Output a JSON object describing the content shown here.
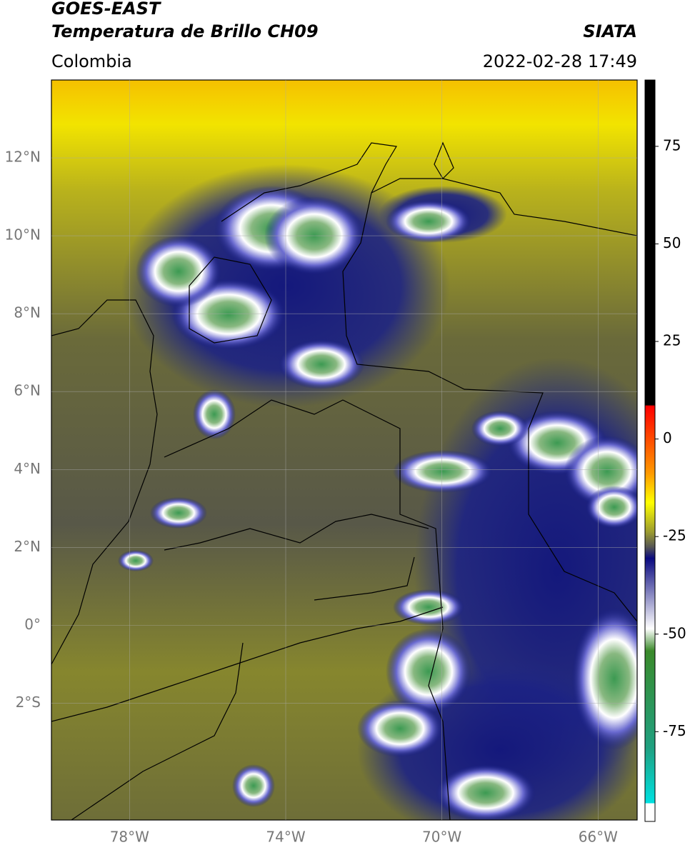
{
  "header": {
    "title": "GOES-EAST",
    "subtitle": "Temperatura de Brillo CH09",
    "agency": "SIATA",
    "region": "Colombia",
    "datetime": "2022-02-28 17:49"
  },
  "map": {
    "xlim": [
      -80,
      -65
    ],
    "ylim": [
      -5,
      14
    ],
    "xticks": [
      {
        "value": -78,
        "label": "78°W"
      },
      {
        "value": -74,
        "label": "74°W"
      },
      {
        "value": -70,
        "label": "70°W"
      },
      {
        "value": -66,
        "label": "66°W"
      }
    ],
    "yticks": [
      {
        "value": 12,
        "label": "12°N"
      },
      {
        "value": 10,
        "label": "10°N"
      },
      {
        "value": 8,
        "label": "8°N"
      },
      {
        "value": 6,
        "label": "6°N"
      },
      {
        "value": 4,
        "label": "4°N"
      },
      {
        "value": 2,
        "label": "2°N"
      },
      {
        "value": 0,
        "label": "0°"
      },
      {
        "value": -2,
        "label": "2°S"
      }
    ],
    "grid": true
  },
  "colorbar": {
    "lim": [
      -98,
      92
    ],
    "ticks": [
      75,
      50,
      25,
      0,
      -25,
      -50,
      -75
    ]
  }
}
